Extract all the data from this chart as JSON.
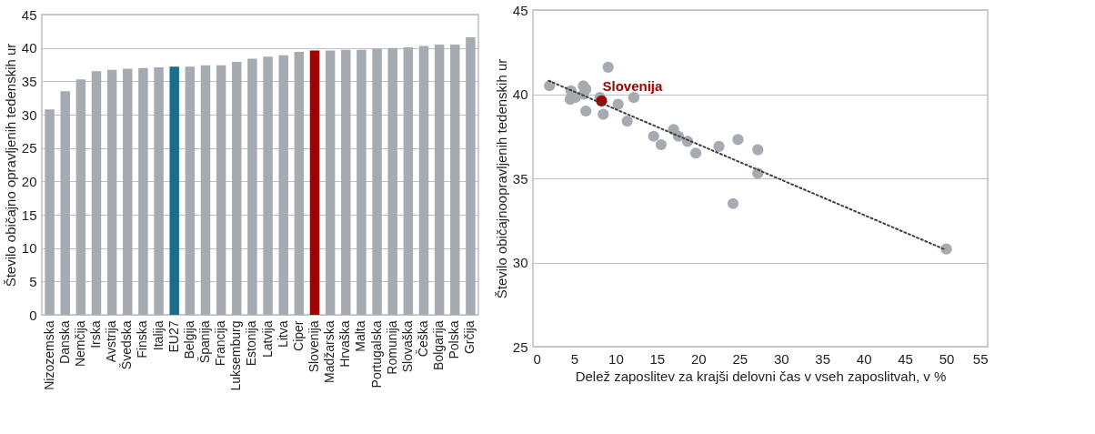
{
  "chart_data": [
    {
      "type": "bar",
      "ylabel": "Število običajno opravljenih tedenskih ur",
      "categories": [
        "Nizozemska",
        "Danska",
        "Nemčija",
        "Irska",
        "Avstrija",
        "Švedska",
        "Finska",
        "Italija",
        "EU27",
        "Belgija",
        "Španija",
        "Francija",
        "Luksemburg",
        "Estonija",
        "Latvija",
        "Litva",
        "Ciper",
        "Slovenija",
        "Madžarska",
        "Hrvaška",
        "Malta",
        "Portugalska",
        "Romunija",
        "Slovaška",
        "Češka",
        "Bolgarija",
        "Polska",
        "Grčija"
      ],
      "values": [
        30.8,
        33.5,
        35.3,
        36.5,
        36.7,
        36.9,
        37.0,
        37.1,
        37.2,
        37.2,
        37.4,
        37.4,
        37.9,
        38.4,
        38.7,
        38.9,
        39.4,
        39.6,
        39.6,
        39.7,
        39.7,
        39.9,
        40.0,
        40.1,
        40.3,
        40.5,
        40.5,
        41.6
      ],
      "colors": [
        "#a6abb2",
        "#a6abb2",
        "#a6abb2",
        "#a6abb2",
        "#a6abb2",
        "#a6abb2",
        "#a6abb2",
        "#a6abb2",
        "#1b6e8a",
        "#a6abb2",
        "#a6abb2",
        "#a6abb2",
        "#a6abb2",
        "#a6abb2",
        "#a6abb2",
        "#a6abb2",
        "#a6abb2",
        "#a00000",
        "#a6abb2",
        "#a6abb2",
        "#a6abb2",
        "#a6abb2",
        "#a6abb2",
        "#a6abb2",
        "#a6abb2",
        "#a6abb2",
        "#a6abb2",
        "#a6abb2"
      ],
      "ylim": [
        0,
        45
      ],
      "yticks": [
        0,
        5,
        10,
        15,
        20,
        25,
        30,
        35,
        40,
        45
      ],
      "grid": "y"
    },
    {
      "type": "scatter",
      "xlabel": "Delež zaposlitev za krajši delovni čas v vseh zaposlitvah, v %",
      "ylabel": "Število običajnoopravljenih tedenskih ur",
      "grid": "y",
      "xlim": [
        0,
        55
      ],
      "xticks": [
        0,
        5,
        10,
        15,
        20,
        25,
        30,
        35,
        40,
        45,
        50,
        55
      ],
      "ylim": [
        25,
        45
      ],
      "yticks": [
        25,
        30,
        35,
        40,
        45
      ],
      "series": [
        {
          "marker": "circle",
          "color": "#a6abb2",
          "x": [
            2.0,
            4.6,
            4.5,
            5.1,
            6.1,
            6.4,
            6.1,
            6.4,
            8.1,
            8.5,
            9.1,
            10.3,
            12.2,
            11.4,
            14.6,
            15.5,
            17.0,
            17.6,
            18.7,
            19.7,
            22.5,
            24.8,
            27.2,
            27.2,
            24.2,
            50.0
          ],
          "values": [
            40.5,
            40.2,
            39.7,
            39.8,
            40.5,
            40.3,
            40.0,
            39.0,
            39.8,
            38.8,
            41.6,
            39.4,
            39.8,
            38.4,
            37.5,
            37.0,
            37.9,
            37.5,
            37.2,
            36.5,
            36.9,
            37.3,
            36.7,
            35.3,
            33.5,
            30.8
          ]
        },
        {
          "name": "Slovenija",
          "marker": "circle",
          "color": "#a00000",
          "x": [
            8.3
          ],
          "values": [
            39.6
          ]
        },
        {
          "type": "line",
          "line_style": "dotted",
          "color": "#404040",
          "x": [
            1.9,
            49.7
          ],
          "values": [
            40.8,
            30.8
          ]
        }
      ]
    }
  ]
}
